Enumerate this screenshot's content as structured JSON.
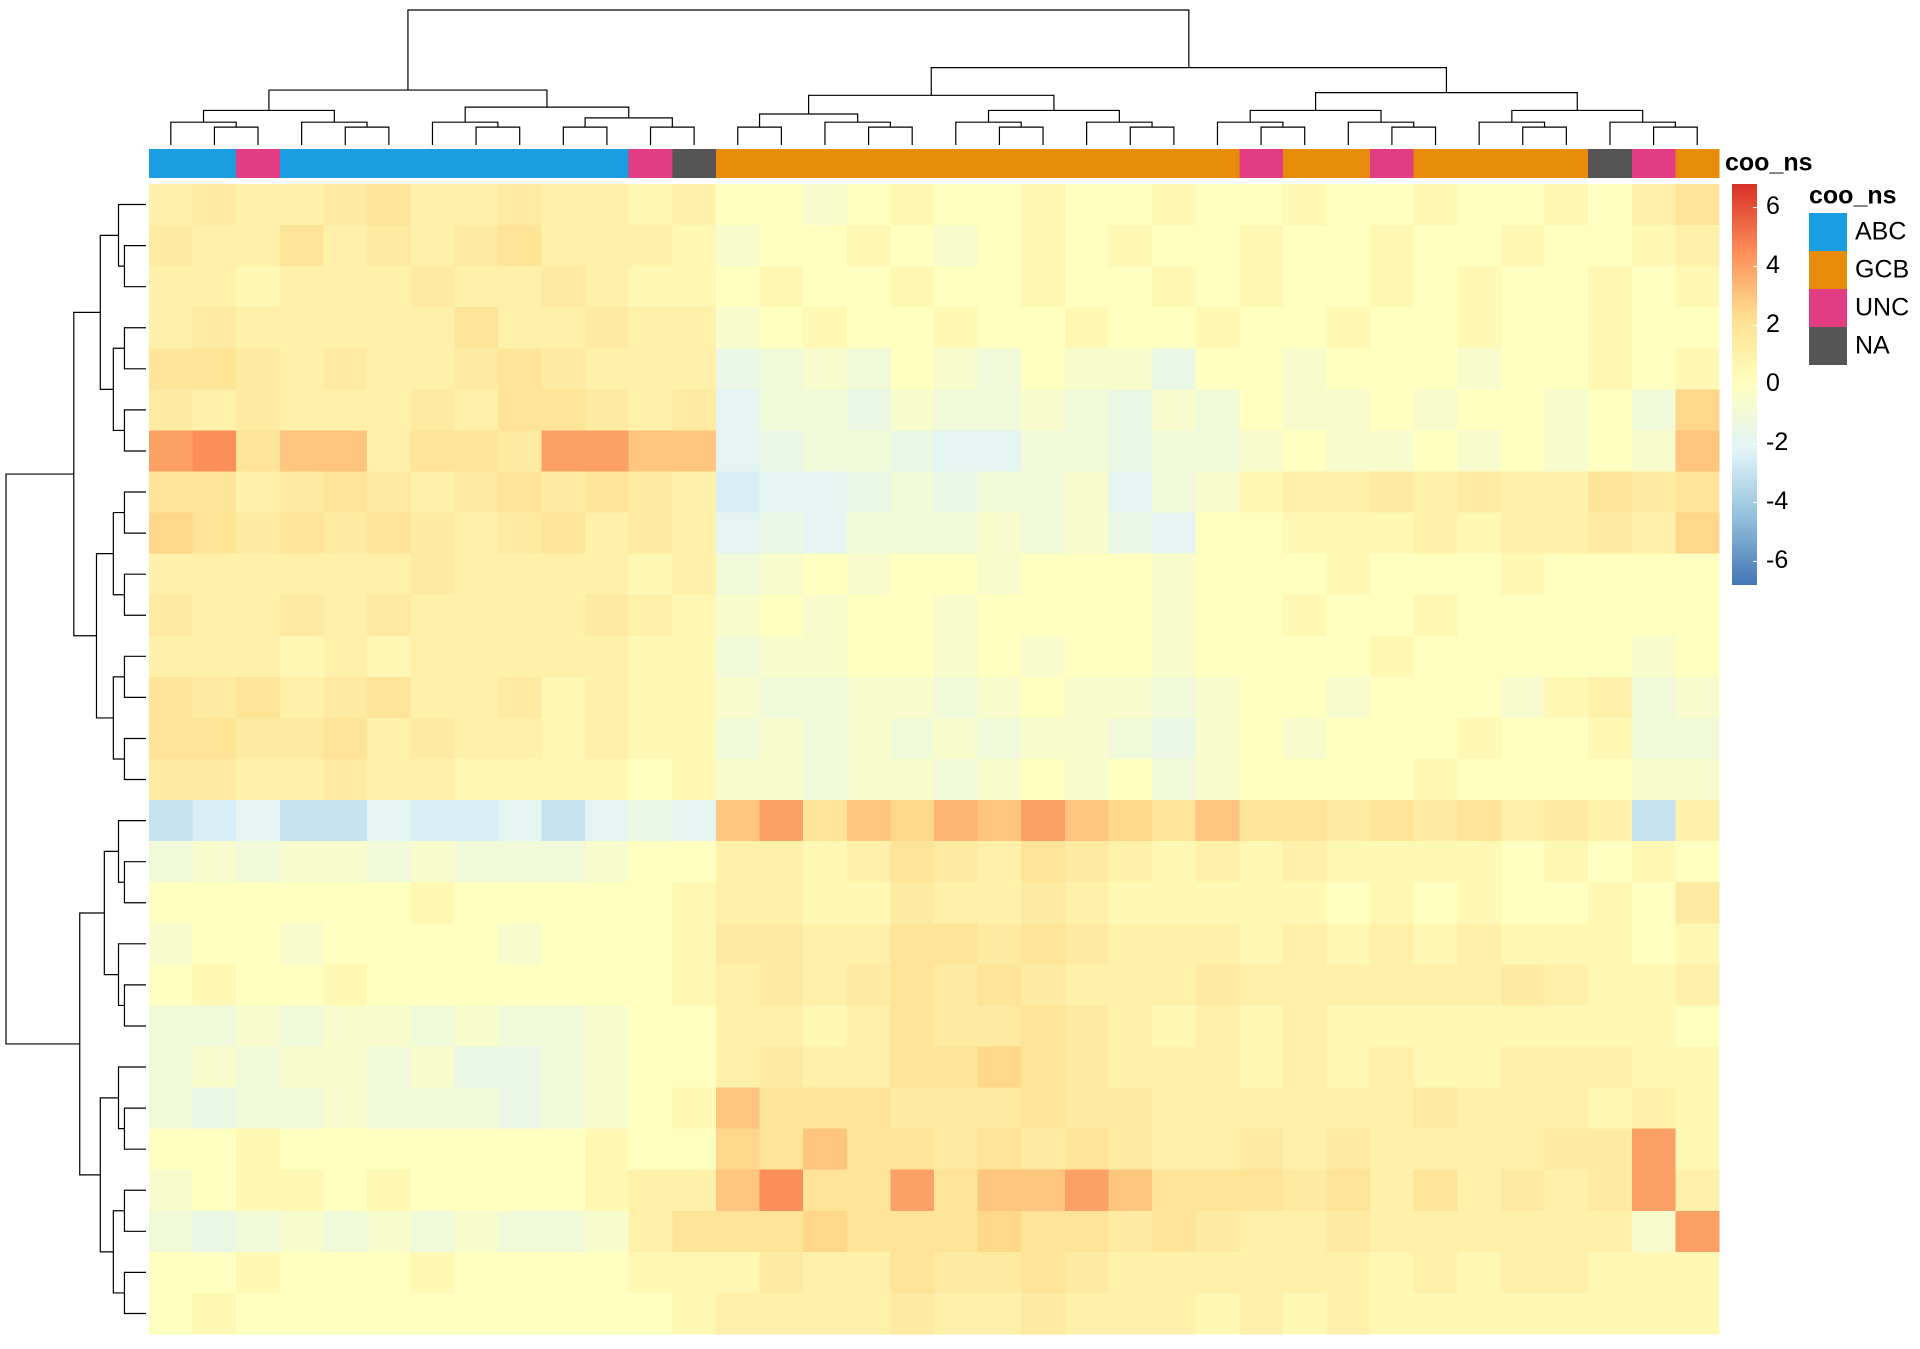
{
  "chart_data": {
    "type": "heatmap",
    "annotation_label": "coo_ns",
    "column_groups": [
      0,
      0,
      2,
      0,
      0,
      0,
      0,
      0,
      0,
      0,
      0,
      2,
      3,
      1,
      1,
      1,
      1,
      1,
      1,
      1,
      1,
      1,
      1,
      1,
      1,
      2,
      1,
      1,
      2,
      1,
      1,
      1,
      1,
      3,
      2,
      1
    ],
    "legend": {
      "title": "coo_ns",
      "categories": [
        "ABC",
        "GCB",
        "UNC",
        "NA"
      ],
      "colors": [
        "#1b9de2",
        "#e88a0a",
        "#e23c82",
        "#555555"
      ]
    },
    "colorbar": {
      "zlim": [
        -6.8,
        6.8
      ],
      "ticks": [
        -6,
        -4,
        -2,
        0,
        2,
        4,
        6
      ],
      "colors": [
        "#4575b4",
        "#91bfdb",
        "#e0f3f8",
        "#ffffbf",
        "#fee090",
        "#fc8d59",
        "#d73027"
      ]
    },
    "values": [
      [
        1,
        1.5,
        1,
        1,
        1.5,
        2,
        1,
        1,
        1.5,
        1,
        1,
        0.5,
        1,
        0,
        0,
        -0.5,
        0,
        0.5,
        0,
        0,
        0.5,
        0,
        0,
        0.5,
        0,
        0,
        0.5,
        0,
        0,
        0.5,
        0,
        0,
        0.5,
        0,
        1,
        2
      ],
      [
        1.5,
        1,
        1,
        2,
        1,
        1.5,
        1,
        1.5,
        2,
        1,
        1,
        1,
        0.5,
        -0.5,
        0,
        0,
        0.5,
        0,
        -0.5,
        0,
        0.5,
        0,
        0.5,
        0,
        0,
        0.5,
        0,
        0,
        0.5,
        0,
        0,
        0.5,
        0,
        0,
        0.5,
        1
      ],
      [
        1,
        1,
        0.5,
        1,
        1,
        1,
        1.5,
        1,
        1,
        1.5,
        1,
        0.5,
        0.5,
        0,
        0.5,
        0,
        0,
        0.5,
        0,
        0,
        0.5,
        0,
        0,
        0.5,
        0,
        0.5,
        0,
        0,
        0.5,
        0,
        0.5,
        0,
        0,
        0.5,
        0,
        0.5
      ],
      [
        1,
        1.5,
        1,
        1,
        1,
        1,
        1,
        2,
        1,
        1,
        1.5,
        1,
        1,
        -0.5,
        0,
        0.5,
        0,
        0,
        0.5,
        0,
        0,
        0.5,
        0,
        0,
        0.5,
        0,
        0,
        0.5,
        0,
        0,
        0.5,
        0,
        0,
        0.5,
        0,
        0
      ],
      [
        2,
        2,
        1.5,
        1,
        1.5,
        1,
        1,
        1.5,
        2,
        1.5,
        1,
        1,
        1,
        -1.5,
        -1,
        -0.5,
        -1,
        0,
        -0.5,
        -1,
        0,
        -0.5,
        -0.5,
        -1.5,
        0,
        0,
        -0.5,
        0,
        0,
        0,
        -0.5,
        0,
        0,
        0.5,
        0,
        0.5
      ],
      [
        1.5,
        1,
        1.5,
        1,
        1,
        1,
        1.5,
        1,
        2,
        2,
        1.5,
        1,
        1.5,
        -2,
        -1,
        -1,
        -1.5,
        -0.5,
        -1,
        -1,
        -0.5,
        -1,
        -1.5,
        -0.5,
        -1,
        0,
        -0.5,
        -0.5,
        0,
        -0.5,
        0,
        0,
        -0.5,
        0,
        -1,
        2.5
      ],
      [
        4,
        4.5,
        2,
        3,
        3,
        1,
        2,
        2,
        1.5,
        4,
        4,
        3,
        3,
        -2,
        -1.5,
        -1,
        -1,
        -1.5,
        -2,
        -2,
        -1,
        -1,
        -1.5,
        -1,
        -1,
        -0.5,
        0,
        -0.5,
        -0.5,
        0,
        -0.5,
        0,
        -0.5,
        0,
        -0.5,
        3
      ],
      [
        2,
        2,
        1,
        1.5,
        2,
        1.5,
        1,
        1.5,
        2,
        1.5,
        2,
        1.5,
        1,
        -2.5,
        -2,
        -2,
        -1.5,
        -1,
        -1.5,
        -1,
        -1,
        -0.5,
        -2,
        -1,
        -0.5,
        0.5,
        1,
        1,
        1.5,
        1,
        1.5,
        1,
        1,
        2,
        1.5,
        2
      ],
      [
        2.5,
        2,
        1.5,
        2,
        1.5,
        2,
        1.5,
        1,
        1.5,
        2,
        1,
        1.5,
        1,
        -2,
        -1.5,
        -2,
        -1,
        -1,
        -1,
        -0.5,
        -1,
        -0.5,
        -1.5,
        -2,
        0,
        0,
        0.5,
        0.5,
        0.5,
        1,
        0.5,
        1,
        1,
        1.5,
        1,
        2.5
      ],
      [
        1,
        1,
        1,
        1,
        1,
        1,
        1.5,
        1,
        1,
        1,
        1,
        0.5,
        1,
        -1,
        -0.5,
        0,
        -0.5,
        0,
        0,
        -0.5,
        0,
        0,
        0,
        -0.5,
        0,
        0,
        0,
        0.5,
        0,
        0,
        0,
        0.5,
        0,
        0,
        0,
        0
      ],
      [
        1.5,
        1,
        1,
        1.5,
        1,
        1.5,
        1,
        1,
        1,
        1,
        1.5,
        1,
        0.5,
        -0.5,
        0,
        -0.5,
        0,
        0,
        -0.5,
        0,
        0,
        0,
        0,
        -0.5,
        0,
        0,
        0.5,
        0,
        0,
        0.5,
        0,
        0,
        0,
        0,
        0,
        0
      ],
      [
        1,
        1,
        1,
        0.5,
        1,
        0.5,
        1,
        1,
        1,
        1,
        1,
        0.5,
        0.5,
        -1,
        -0.5,
        -0.5,
        0,
        0,
        -0.5,
        0,
        -0.5,
        0,
        0,
        -0.5,
        0,
        0,
        0,
        0,
        0.5,
        0,
        0,
        0,
        0,
        0,
        -0.5,
        0
      ],
      [
        2,
        1.5,
        2,
        1,
        1.5,
        2,
        1,
        1,
        1.5,
        0.5,
        1,
        0.5,
        0.5,
        -0.5,
        -1,
        -1,
        -0.5,
        -0.5,
        -1,
        -0.5,
        0,
        -0.5,
        -0.5,
        -1,
        -0.5,
        0,
        0,
        -0.5,
        0,
        0,
        0,
        -0.5,
        0.5,
        1,
        -1,
        -0.5
      ],
      [
        2,
        2,
        1.5,
        1.5,
        2,
        1,
        1.5,
        1,
        1,
        0.5,
        1,
        0.5,
        0.5,
        -1,
        -0.5,
        -1,
        -0.5,
        -1,
        -0.5,
        -1,
        -0.5,
        -0.5,
        -1,
        -1.5,
        -0.5,
        0,
        -0.5,
        0,
        0,
        0,
        0.5,
        0,
        0,
        0.5,
        -1,
        -1
      ],
      [
        1.5,
        1.5,
        1,
        1,
        1.5,
        1,
        1,
        0.5,
        0.5,
        0.5,
        0.5,
        0,
        0.5,
        -0.5,
        -0.5,
        -1,
        -0.5,
        -0.5,
        -1,
        -0.5,
        0,
        -0.5,
        0,
        -1,
        -0.5,
        0,
        0,
        0,
        0,
        0.5,
        0,
        0,
        0,
        0,
        -0.5,
        -0.5
      ],
      [
        -3,
        -2.5,
        -2,
        -3,
        -3,
        -2,
        -2.5,
        -2.5,
        -2,
        -3,
        -2,
        -1.5,
        -2,
        3,
        4,
        2,
        3,
        2.5,
        3.5,
        3,
        4,
        3,
        2.5,
        2,
        3,
        2,
        2,
        1.5,
        2,
        1.5,
        2,
        1,
        1.5,
        1,
        -3,
        1
      ],
      [
        -1,
        -0.5,
        -1,
        -0.5,
        -0.5,
        -1,
        -0.5,
        -1,
        -1,
        -1,
        -0.5,
        0,
        0,
        1,
        1,
        0.5,
        1,
        2,
        1.5,
        1,
        2,
        1.5,
        1,
        0.5,
        1,
        0.5,
        1,
        0.5,
        0.5,
        0.5,
        0.5,
        0,
        0.5,
        0,
        0.5,
        0
      ],
      [
        0,
        0,
        0,
        0,
        0,
        0,
        0.5,
        0,
        0,
        0,
        0,
        0,
        0.5,
        1,
        1,
        0.5,
        0.5,
        1.5,
        1,
        1,
        1.5,
        1,
        0.5,
        0.5,
        0.5,
        0.5,
        0.5,
        0,
        0.5,
        0,
        0.5,
        0,
        0,
        0.5,
        0,
        1.5
      ],
      [
        -0.5,
        0,
        0,
        -0.5,
        0,
        0,
        0,
        0,
        -0.5,
        0,
        0,
        0,
        0.5,
        1.5,
        1.5,
        1,
        1,
        2,
        2,
        1.5,
        2,
        1.5,
        1,
        1,
        1,
        0.5,
        1,
        0.5,
        1,
        0.5,
        1,
        0.5,
        0.5,
        0.5,
        0,
        0.5
      ],
      [
        0,
        0.5,
        0,
        0,
        0.5,
        0,
        0,
        0,
        0,
        0,
        0,
        0,
        0.5,
        1,
        1.5,
        1,
        1.5,
        2,
        1.5,
        2,
        1.5,
        1,
        1,
        1,
        1.5,
        1,
        1,
        1,
        1,
        1,
        1,
        1.5,
        1,
        0.5,
        0.5,
        1
      ],
      [
        -1,
        -1,
        -0.5,
        -1,
        -0.5,
        -0.5,
        -1,
        -0.5,
        -1,
        -1,
        -0.5,
        0,
        0,
        1,
        1,
        0.5,
        1,
        2,
        1.5,
        1.5,
        2,
        1.5,
        1,
        0.5,
        1,
        0.5,
        1,
        0.5,
        0.5,
        0.5,
        0.5,
        0.5,
        0.5,
        0.5,
        0.5,
        0
      ],
      [
        -1,
        -0.5,
        -1,
        -0.5,
        -0.5,
        -1,
        -0.5,
        -1.5,
        -1.5,
        -1,
        -0.5,
        0,
        0,
        1,
        1.5,
        1,
        1,
        2,
        2,
        2.5,
        2,
        1.5,
        1,
        1,
        1,
        0.5,
        1,
        0.5,
        1,
        0.5,
        0.5,
        1,
        1,
        1,
        0.5,
        0.5
      ],
      [
        -1,
        -1.5,
        -1,
        -1,
        -0.5,
        -1,
        -1,
        -1,
        -1.5,
        -1,
        -0.5,
        0,
        0.5,
        3,
        2,
        2,
        2,
        1.5,
        1.5,
        1.5,
        2,
        1.5,
        1.5,
        1,
        1,
        1,
        1,
        1,
        1,
        1.5,
        1,
        1,
        1,
        0.5,
        1,
        0.5
      ],
      [
        0,
        0,
        0.5,
        0,
        0,
        0,
        0,
        0,
        0,
        0,
        0.5,
        0,
        0,
        2.5,
        2,
        3,
        2,
        2,
        1.5,
        2,
        1.5,
        2,
        1.5,
        1,
        1,
        1.5,
        1,
        1.5,
        1,
        1,
        1,
        1,
        1.5,
        1.5,
        4,
        0.5
      ],
      [
        -0.5,
        0,
        0.5,
        0.5,
        0,
        0.5,
        0,
        0,
        0,
        0,
        0.5,
        1,
        1,
        3,
        4.5,
        2,
        2,
        4,
        2,
        3,
        3,
        4,
        3,
        2,
        2,
        2,
        1.5,
        2,
        1,
        2,
        1,
        1.5,
        1,
        1.5,
        4,
        1
      ],
      [
        -1,
        -1.5,
        -1,
        -0.5,
        -1,
        -0.5,
        -1,
        -0.5,
        -1,
        -1,
        -0.5,
        1,
        2,
        2,
        2,
        2.5,
        2,
        2,
        2,
        2.5,
        2,
        2,
        1.5,
        2,
        1.5,
        1,
        1,
        1.5,
        1,
        1,
        1,
        1,
        1,
        1,
        -0.5,
        4
      ],
      [
        0,
        0,
        0.5,
        0,
        0,
        0,
        0.5,
        0,
        0,
        0,
        0,
        0.5,
        0.5,
        0.5,
        1.5,
        1,
        1,
        2,
        1.5,
        1.5,
        2,
        1.5,
        1,
        1,
        1,
        1,
        1,
        1,
        0.5,
        1,
        0.5,
        1,
        1,
        0.5,
        0.5,
        0.5
      ],
      [
        0,
        0.5,
        0,
        0,
        0,
        0,
        0,
        0,
        0,
        0,
        0,
        0,
        0.5,
        1,
        1,
        1,
        1,
        1.5,
        1,
        1,
        1.5,
        1,
        1,
        1,
        0.5,
        1,
        0.5,
        1,
        0.5,
        0.5,
        0.5,
        0.5,
        0.5,
        0.5,
        0.5,
        0.5
      ]
    ]
  }
}
